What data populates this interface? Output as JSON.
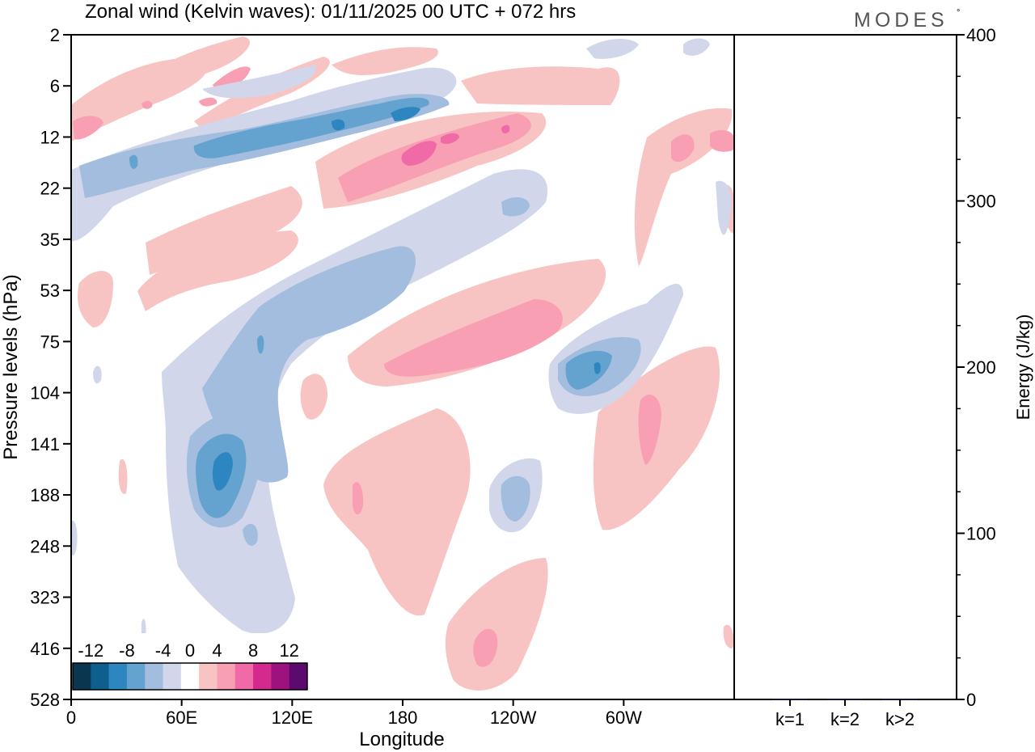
{
  "title": "Zonal wind (Kelvin waves):  01/11/2025  00 UTC  + 072 hrs",
  "logo": "MODES",
  "logo_mark": "°",
  "chart_data": [
    {
      "type": "heatmap",
      "variable": "Zonal wind (Kelvin waves)",
      "xlabel": "Longitude",
      "ylabel": "Pressure levels (hPa)",
      "x_range_deg": [
        0,
        360
      ],
      "x_ticks": [
        {
          "deg": 0,
          "label": "0"
        },
        {
          "deg": 60,
          "label": "60E"
        },
        {
          "deg": 120,
          "label": "120E"
        },
        {
          "deg": 180,
          "label": "180"
        },
        {
          "deg": 240,
          "label": "120W"
        },
        {
          "deg": 300,
          "label": "60W"
        }
      ],
      "y_scale": "log",
      "y_range_hPa": [
        2,
        528
      ],
      "y_ticks": [
        "2",
        "6",
        "12",
        "22",
        "35",
        "53",
        "75",
        "104",
        "141",
        "188",
        "248",
        "323",
        "416",
        "528"
      ],
      "colorbar": {
        "labels": [
          "-12",
          "-8",
          "-4",
          "0",
          "4",
          "8",
          "12"
        ],
        "levels": [
          -14,
          -12,
          -10,
          -8,
          -6,
          -4,
          -2,
          2,
          4,
          6,
          8,
          10,
          12,
          14
        ],
        "colors": [
          "#0b3650",
          "#0e5f8e",
          "#2e86c0",
          "#64a2cf",
          "#a2bddd",
          "#d2d6ea",
          "#ffffff",
          "#f8c4c3",
          "#f89fb4",
          "#ef6aa6",
          "#d42a8e",
          "#9c137f",
          "#5c0a6d"
        ]
      },
      "features": [
        {
          "sign": "negative",
          "max_abs": 10,
          "lon": 65,
          "pressure_hPa": 160
        },
        {
          "sign": "negative",
          "max_abs": 8,
          "lon": 255,
          "pressure_hPa": 95
        },
        {
          "sign": "negative",
          "max_abs": 8,
          "lon": 260,
          "pressure_hPa": 185
        },
        {
          "sign": "negative",
          "max_abs": 8,
          "lon": 130,
          "pressure_hPa": 11
        },
        {
          "sign": "negative",
          "max_abs": 6,
          "lon": 140,
          "pressure_hPa": 55
        },
        {
          "sign": "positive",
          "max_abs": 8,
          "lon": 190,
          "pressure_hPa": 14
        },
        {
          "sign": "positive",
          "max_abs": 6,
          "lon": 210,
          "pressure_hPa": 80
        },
        {
          "sign": "positive",
          "max_abs": 6,
          "lon": 225,
          "pressure_hPa": 400
        },
        {
          "sign": "positive",
          "max_abs": 6,
          "lon": 315,
          "pressure_hPa": 140
        },
        {
          "sign": "positive",
          "max_abs": 6,
          "lon": 15,
          "pressure_hPa": 10
        }
      ]
    },
    {
      "type": "bar",
      "ylabel": "Energy (J/kg)",
      "categories": [
        "k=1",
        "k=2",
        "k>2"
      ],
      "values": [
        0.3,
        0.3,
        0.3
      ],
      "ylim": [
        0,
        400
      ],
      "y_ticks": [
        "0",
        "100",
        "200",
        "300",
        "400"
      ]
    }
  ]
}
